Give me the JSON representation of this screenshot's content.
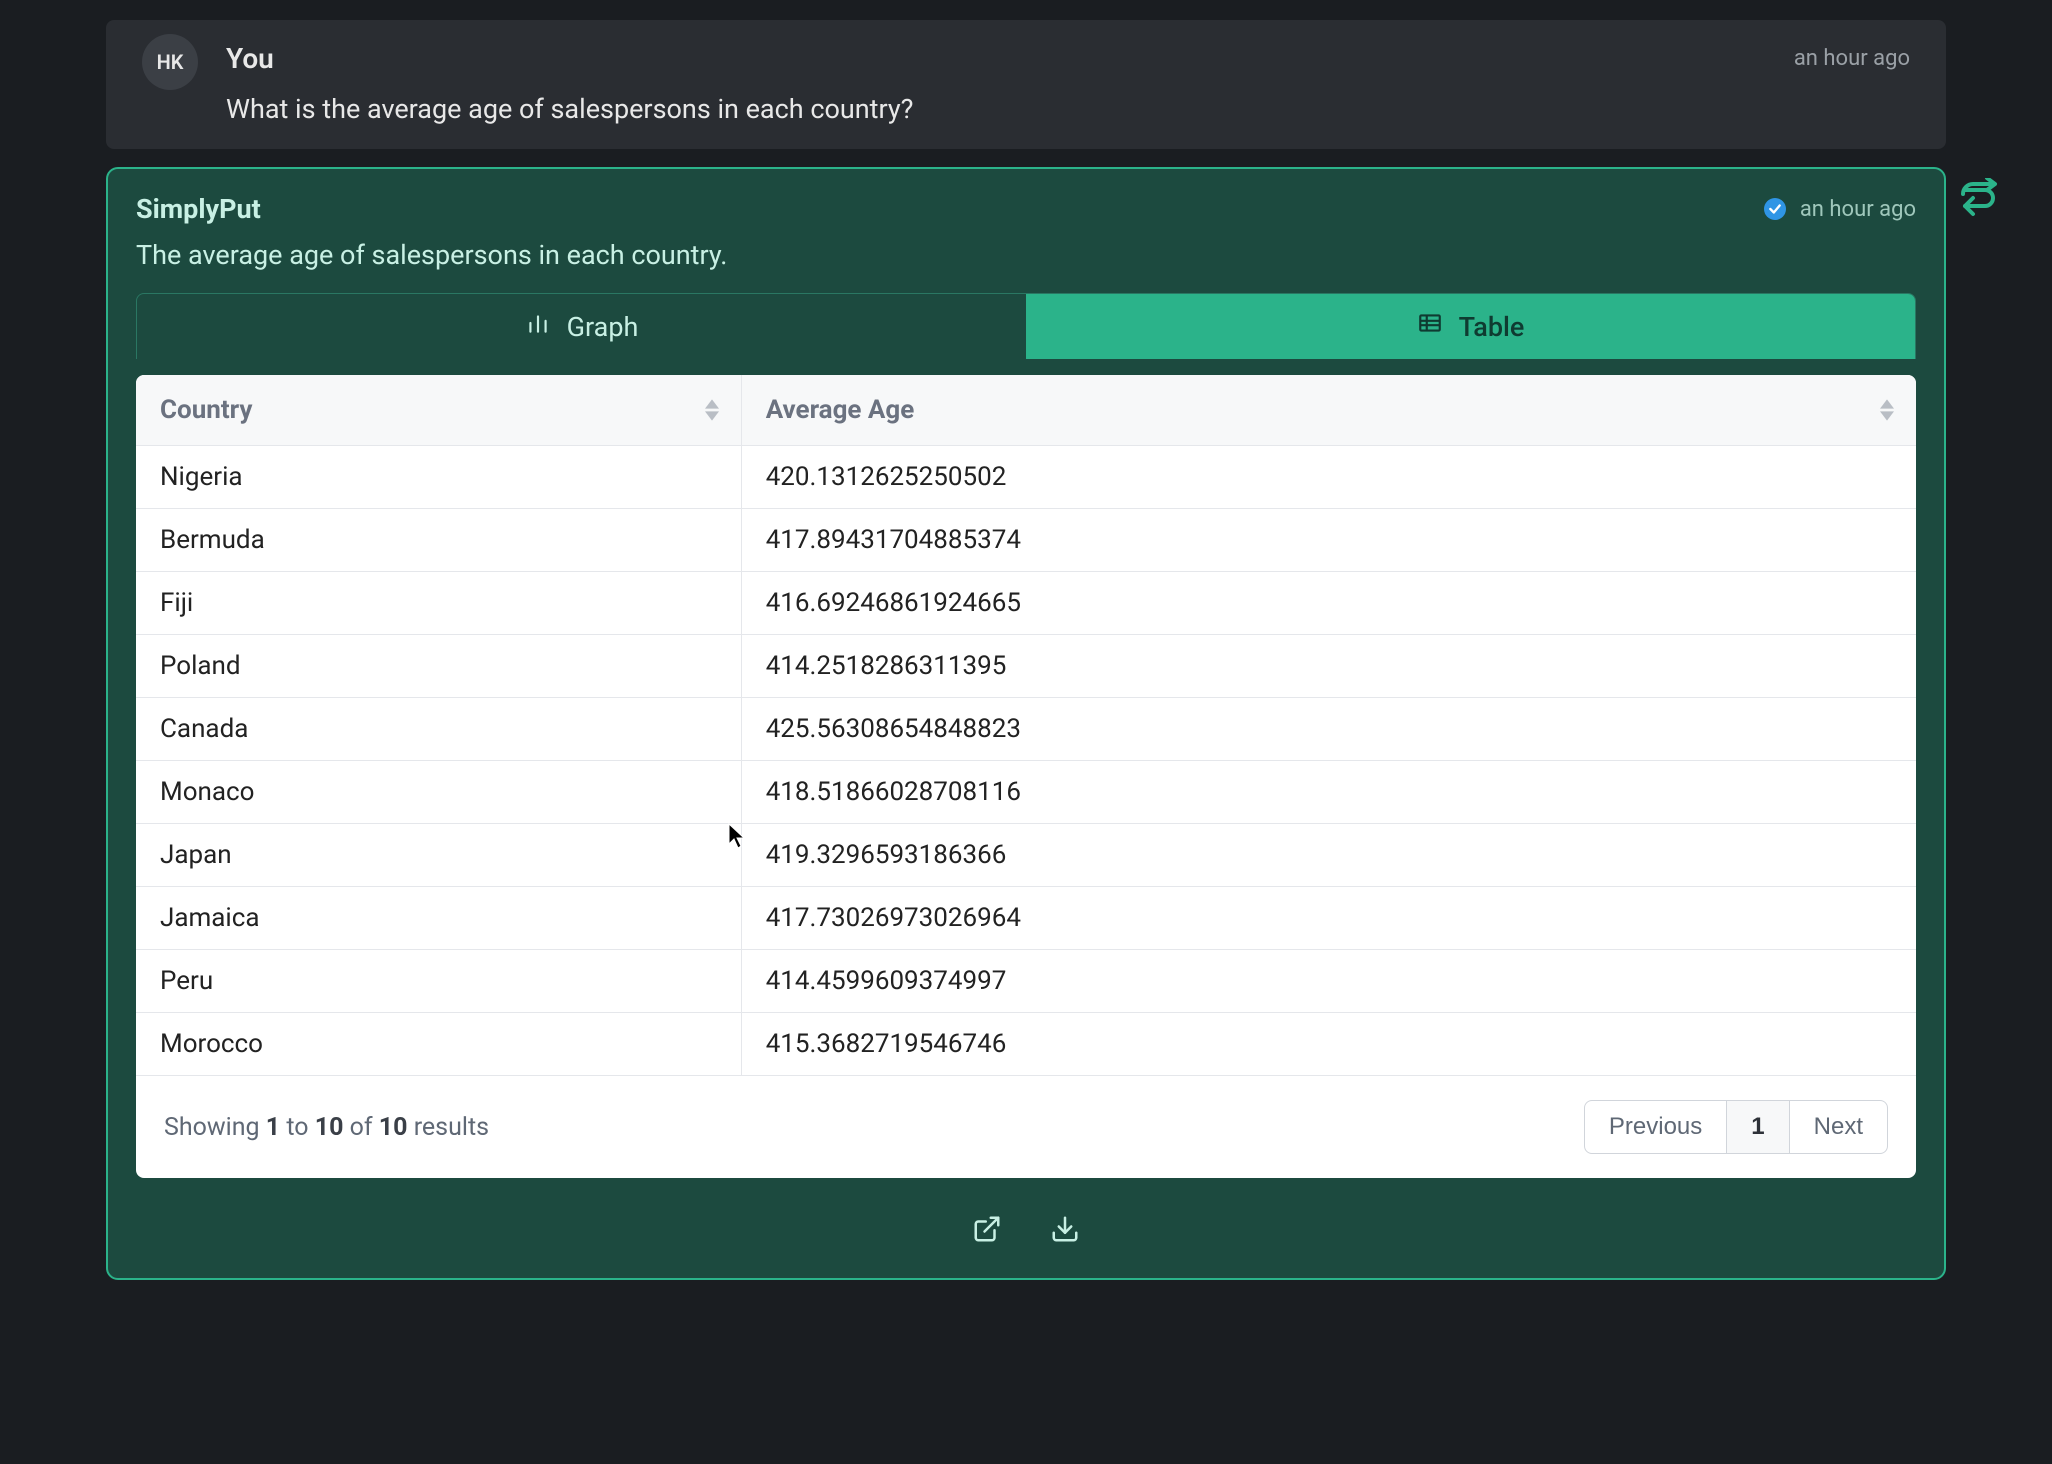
{
  "user": {
    "avatar_initials": "HK",
    "name": "You",
    "timestamp": "an hour ago",
    "message": "What is the average age of salespersons in each country?"
  },
  "assistant": {
    "name": "SimplyPut",
    "timestamp": "an hour ago",
    "summary": "The average age of salespersons in each country."
  },
  "tabs": {
    "graph_label": "Graph",
    "table_label": "Table",
    "active": "table"
  },
  "table": {
    "columns": [
      "Country",
      "Average Age"
    ],
    "rows": [
      [
        "Nigeria",
        "420.1312625250502"
      ],
      [
        "Bermuda",
        "417.89431704885374"
      ],
      [
        "Fiji",
        "416.69246861924665"
      ],
      [
        "Poland",
        "414.2518286311395"
      ],
      [
        "Canada",
        "425.56308654848823"
      ],
      [
        "Monaco",
        "418.51866028708116"
      ],
      [
        "Japan",
        "419.3296593186366"
      ],
      [
        "Jamaica",
        "417.73026973026964"
      ],
      [
        "Peru",
        "414.4599609374997"
      ],
      [
        "Morocco",
        "415.3682719546746"
      ]
    ]
  },
  "pagination": {
    "showing_prefix": "Showing",
    "from": "1",
    "to_word": "to",
    "to": "10",
    "of_word": "of",
    "total": "10",
    "results_word": "results",
    "previous": "Previous",
    "current": "1",
    "next": "Next"
  },
  "colors": {
    "bg_dark": "#1a1d21",
    "bg_user": "#2a2d32",
    "bg_assistant": "#1c4a3f",
    "border_assistant": "#2bb38a",
    "tab_active": "#2bb38a",
    "table_bg": "#ffffff",
    "table_header_bg": "#f7f8f9",
    "table_border": "#e5e7eb"
  }
}
